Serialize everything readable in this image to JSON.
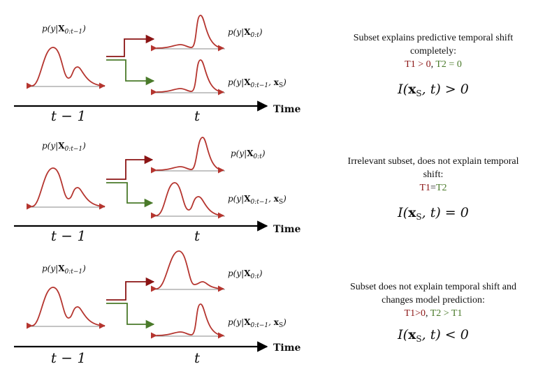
{
  "colors": {
    "curve": "#b5352f",
    "red": "#8b1414",
    "green": "#4a7a2a",
    "baseline": "#888888",
    "axis": "#000000"
  },
  "common": {
    "time_label": "Time",
    "tick_prev": "t − 1",
    "tick_now": "t",
    "label_prev": {
      "head": "p(y|",
      "bold": "X",
      "sub": "0:t−1",
      "tail": ")"
    },
    "label_top": {
      "head": "p(y|",
      "bold": "X",
      "sub": "0:t",
      "tail": ")"
    },
    "label_bottom": {
      "head": "p(y|",
      "bold": "X",
      "sub": "0:t−1",
      "mid": ", ",
      "bold2": "x",
      "sub2": "S",
      "tail": ")"
    }
  },
  "panels": [
    {
      "desc_lines": [
        "Subset explains predictive temporal shift",
        "completely:"
      ],
      "t1": "T1 > 0",
      "sep": ", ",
      "t2": "T2 = 0",
      "eq": {
        "head": "I(",
        "bold": "x",
        "sub": "S",
        "tail": ", t) > 0"
      }
    },
    {
      "desc_lines": [
        "Irrelevant subset, does not explain temporal",
        "shift:"
      ],
      "t1": "T1",
      "sep": "=",
      "t2": "T2",
      "eq": {
        "head": "I(",
        "bold": "x",
        "sub": "S",
        "tail": ", t) = 0"
      }
    },
    {
      "desc_lines": [
        "Subset does not explain temporal shift and",
        "changes model prediction:"
      ],
      "t1": "T1>0",
      "sep": ", ",
      "t2": "T2 > T1",
      "eq": {
        "head": "I(",
        "bold": "x",
        "sub": "S",
        "tail": ", t) < 0"
      }
    }
  ]
}
